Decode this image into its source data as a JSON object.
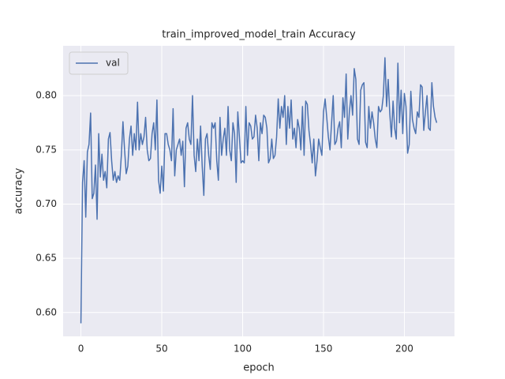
{
  "chart_data": {
    "type": "line",
    "title": "train_improved_model_train Accuracy",
    "xlabel": "epoch",
    "ylabel": "accuracy",
    "x": [
      0,
      1,
      2,
      3,
      4,
      5,
      6,
      7,
      8,
      9,
      10,
      11,
      12,
      13,
      14,
      15,
      16,
      17,
      18,
      19,
      20,
      21,
      22,
      23,
      24,
      25,
      26,
      27,
      28,
      29,
      30,
      31,
      32,
      33,
      34,
      35,
      36,
      37,
      38,
      39,
      40,
      41,
      42,
      43,
      44,
      45,
      46,
      47,
      48,
      49,
      50,
      51,
      52,
      53,
      54,
      55,
      56,
      57,
      58,
      59,
      60,
      61,
      62,
      63,
      64,
      65,
      66,
      67,
      68,
      69,
      70,
      71,
      72,
      73,
      74,
      75,
      76,
      77,
      78,
      79,
      80,
      81,
      82,
      83,
      84,
      85,
      86,
      87,
      88,
      89,
      90,
      91,
      92,
      93,
      94,
      95,
      96,
      97,
      98,
      99,
      100,
      101,
      102,
      103,
      104,
      105,
      106,
      107,
      108,
      109,
      110,
      111,
      112,
      113,
      114,
      115,
      116,
      117,
      118,
      119,
      120,
      121,
      122,
      123,
      124,
      125,
      126,
      127,
      128,
      129,
      130,
      131,
      132,
      133,
      134,
      135,
      136,
      137,
      138,
      139,
      140,
      141,
      142,
      143,
      144,
      145,
      146,
      147,
      148,
      149,
      150,
      151,
      152,
      153,
      154,
      155,
      156,
      157,
      158,
      159,
      160,
      161,
      162,
      163,
      164,
      165,
      166,
      167,
      168,
      169,
      170,
      171,
      172,
      173,
      174,
      175,
      176,
      177,
      178,
      179,
      180,
      181,
      182,
      183,
      184,
      185,
      186,
      187,
      188,
      189,
      190,
      191,
      192,
      193,
      194,
      195,
      196,
      197,
      198,
      199,
      200,
      201,
      202,
      203,
      204,
      205,
      206,
      207,
      208,
      209,
      210,
      211,
      212,
      213,
      214,
      215,
      216,
      217,
      218,
      219,
      220
    ],
    "series": [
      {
        "name": "val",
        "color": "#4c72b0",
        "values": [
          0.59,
          0.72,
          0.74,
          0.688,
          0.748,
          0.755,
          0.784,
          0.705,
          0.71,
          0.736,
          0.686,
          0.765,
          0.725,
          0.746,
          0.722,
          0.73,
          0.715,
          0.76,
          0.766,
          0.74,
          0.722,
          0.73,
          0.72,
          0.726,
          0.722,
          0.745,
          0.776,
          0.75,
          0.728,
          0.735,
          0.76,
          0.772,
          0.745,
          0.765,
          0.75,
          0.794,
          0.75,
          0.765,
          0.755,
          0.762,
          0.78,
          0.75,
          0.74,
          0.742,
          0.765,
          0.775,
          0.75,
          0.796,
          0.722,
          0.71,
          0.735,
          0.712,
          0.765,
          0.765,
          0.755,
          0.75,
          0.74,
          0.788,
          0.726,
          0.75,
          0.755,
          0.76,
          0.745,
          0.758,
          0.716,
          0.77,
          0.775,
          0.76,
          0.755,
          0.8,
          0.745,
          0.73,
          0.76,
          0.74,
          0.772,
          0.735,
          0.708,
          0.76,
          0.765,
          0.745,
          0.732,
          0.775,
          0.77,
          0.775,
          0.74,
          0.722,
          0.78,
          0.745,
          0.76,
          0.77,
          0.745,
          0.79,
          0.75,
          0.74,
          0.775,
          0.765,
          0.72,
          0.785,
          0.762,
          0.738,
          0.74,
          0.738,
          0.79,
          0.745,
          0.775,
          0.772,
          0.76,
          0.762,
          0.782,
          0.77,
          0.74,
          0.775,
          0.765,
          0.782,
          0.78,
          0.77,
          0.738,
          0.742,
          0.76,
          0.742,
          0.745,
          0.762,
          0.797,
          0.77,
          0.79,
          0.78,
          0.8,
          0.755,
          0.79,
          0.77,
          0.796,
          0.76,
          0.77,
          0.752,
          0.778,
          0.77,
          0.75,
          0.79,
          0.745,
          0.795,
          0.792,
          0.768,
          0.755,
          0.738,
          0.76,
          0.726,
          0.74,
          0.76,
          0.752,
          0.745,
          0.785,
          0.797,
          0.78,
          0.762,
          0.75,
          0.775,
          0.8,
          0.755,
          0.758,
          0.77,
          0.776,
          0.752,
          0.798,
          0.78,
          0.82,
          0.76,
          0.785,
          0.8,
          0.782,
          0.825,
          0.815,
          0.76,
          0.755,
          0.805,
          0.81,
          0.812,
          0.757,
          0.752,
          0.79,
          0.77,
          0.785,
          0.775,
          0.76,
          0.752,
          0.79,
          0.785,
          0.787,
          0.8,
          0.835,
          0.79,
          0.815,
          0.783,
          0.762,
          0.795,
          0.77,
          0.76,
          0.83,
          0.775,
          0.805,
          0.765,
          0.802,
          0.79,
          0.747,
          0.755,
          0.804,
          0.778,
          0.77,
          0.765,
          0.785,
          0.78,
          0.81,
          0.808,
          0.768,
          0.785,
          0.8,
          0.77,
          0.768,
          0.812,
          0.79,
          0.78,
          0.775
        ]
      }
    ],
    "xlim": [
      -11,
      231
    ],
    "xticks": [
      0,
      50,
      100,
      150,
      200
    ],
    "ylim": [
      0.578,
      0.846
    ],
    "yticks": [
      {
        "value": 0.6,
        "label": "0.60"
      },
      0.65,
      {
        "value": 0.7,
        "label": "0.70"
      },
      0.75,
      {
        "value": 0.8,
        "label": "0.80"
      }
    ],
    "grid": true,
    "legend": "upper left"
  }
}
